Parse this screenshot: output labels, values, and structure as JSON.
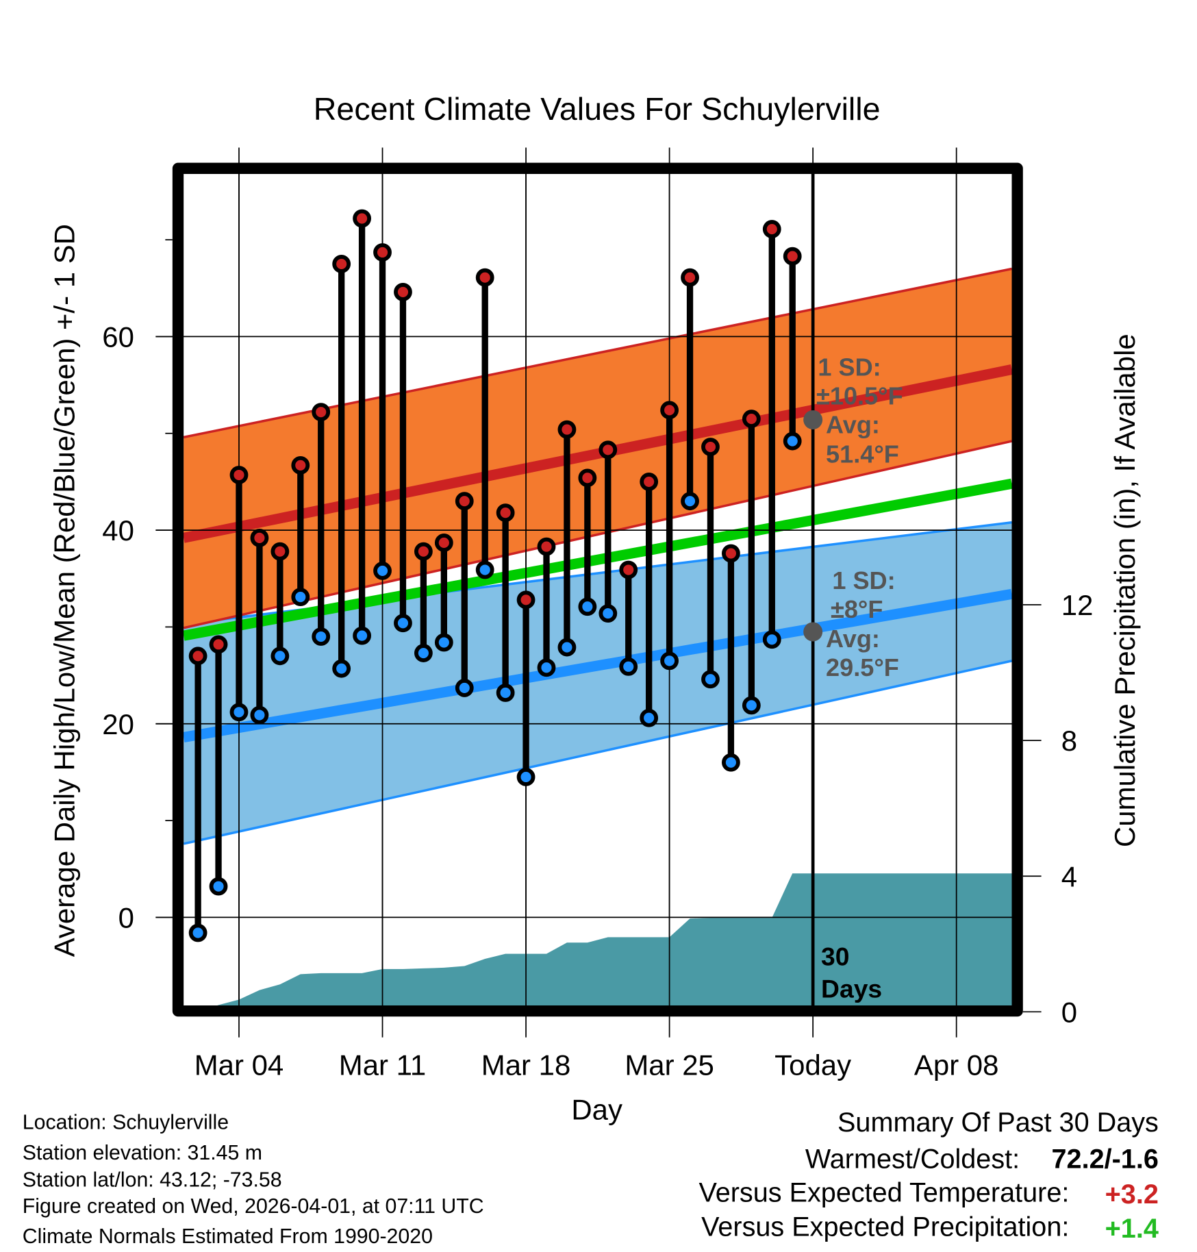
{
  "chart_data": {
    "type": "line",
    "title": "Recent Climate Values For Schuylerville",
    "xlabel": "Day",
    "ylabel": "Average Daily High/Low/Mean (Red/Blue/Green) +/- 1 SD",
    "y2label": "Cumulative Precipitation (in), If Available",
    "ylim": [
      -9.1,
      76.8
    ],
    "y2lim": [
      0,
      24.7
    ],
    "yticks": [
      0,
      20,
      40,
      60
    ],
    "yticks_minor": [
      10,
      30,
      50,
      70
    ],
    "y2ticks": [
      0,
      4,
      8,
      12
    ],
    "xlim_days_from_mar01": [
      0.3,
      40.7
    ],
    "xticks": [
      {
        "day": 3,
        "label": "Mar 04"
      },
      {
        "day": 10,
        "label": "Mar 11"
      },
      {
        "day": 17,
        "label": "Mar 18"
      },
      {
        "day": 24,
        "label": "Mar 25"
      },
      {
        "day": 31,
        "label": "Today"
      },
      {
        "day": 38,
        "label": "Apr 08"
      }
    ],
    "today_day": 31,
    "days": [
      1,
      2,
      3,
      4,
      5,
      6,
      7,
      8,
      9,
      10,
      11,
      12,
      13,
      14,
      15,
      16,
      17,
      18,
      19,
      20,
      21,
      22,
      23,
      24,
      25,
      26,
      27,
      28,
      29,
      30
    ],
    "highs": [
      27.0,
      28.2,
      45.7,
      39.2,
      37.8,
      46.7,
      52.2,
      67.5,
      72.2,
      68.7,
      64.6,
      37.8,
      38.7,
      43.0,
      66.1,
      41.8,
      32.8,
      38.3,
      50.4,
      45.4,
      48.3,
      35.9,
      45.0,
      52.4,
      66.1,
      48.6,
      37.6,
      51.5,
      71.1,
      68.3
    ],
    "lows": [
      -1.6,
      3.2,
      21.2,
      20.9,
      27.0,
      33.1,
      29.0,
      25.7,
      29.1,
      35.8,
      30.4,
      27.3,
      28.4,
      23.7,
      35.9,
      23.2,
      14.5,
      25.8,
      27.9,
      32.1,
      31.4,
      25.9,
      20.6,
      26.5,
      43.0,
      24.6,
      16.0,
      21.9,
      28.7,
      49.2
    ],
    "precip_cumulative": [
      0,
      0.2,
      0.36,
      0.64,
      0.81,
      1.11,
      1.14,
      1.14,
      1.14,
      1.26,
      1.26,
      1.28,
      1.3,
      1.35,
      1.56,
      1.71,
      1.71,
      1.71,
      2.04,
      2.04,
      2.2,
      2.2,
      2.2,
      2.2,
      2.75,
      2.77,
      2.77,
      2.77,
      2.77,
      4.08
    ],
    "normals": {
      "days": [
        0.3,
        40.7
      ],
      "high_mean": [
        39.2,
        56.6
      ],
      "high_upper": [
        49.6,
        67.0
      ],
      "high_lower": [
        29.9,
        49.2
      ],
      "mean": [
        29.1,
        44.8
      ],
      "low_mean": [
        18.6,
        33.4
      ],
      "low_upper": [
        30.3,
        40.8
      ],
      "low_lower": [
        7.6,
        26.5
      ]
    },
    "annotations": {
      "high_sd_label": "1 SD:",
      "high_sd_value": "±10.5°F",
      "high_avg_label": "Avg:",
      "high_avg_value": "51.4°F",
      "high_avg": 51.4,
      "low_sd_label": "1 SD:",
      "low_sd_value": "±8°F",
      "low_avg_label": "Avg:",
      "low_avg_value": "29.5°F",
      "low_avg": 29.5,
      "window_line1": "30",
      "window_line2": "Days"
    },
    "colors": {
      "high_band": "#F47A2E",
      "high_line": "#CC2222",
      "low_band": "#82C0E6",
      "low_line": "#1E90FF",
      "mean_line": "#00CC00",
      "precip": "#4A9AA5",
      "high_dot": "#CC2222",
      "low_dot": "#1E90FF"
    }
  },
  "footer": {
    "location": "Location: Schuylerville",
    "elevation": "Station elevation: 31.45 m",
    "latlon": "Station lat/lon: 43.12; -73.58",
    "created": "Figure created on Wed, 2026-04-01, at 07:11 UTC",
    "normals": "Climate Normals Estimated From 1990-2020"
  },
  "summary": {
    "title": "Summary Of Past 30 Days",
    "warm_cold_label": "Warmest/Coldest:",
    "warm_cold_value": "72.2/-1.6",
    "temp_label": "Versus Expected Temperature:",
    "temp_value": "+3.2",
    "temp_color": "#CC2222",
    "precip_label": "Versus Expected Precipitation:",
    "precip_value": "+1.4",
    "precip_color": "#22BB22"
  }
}
